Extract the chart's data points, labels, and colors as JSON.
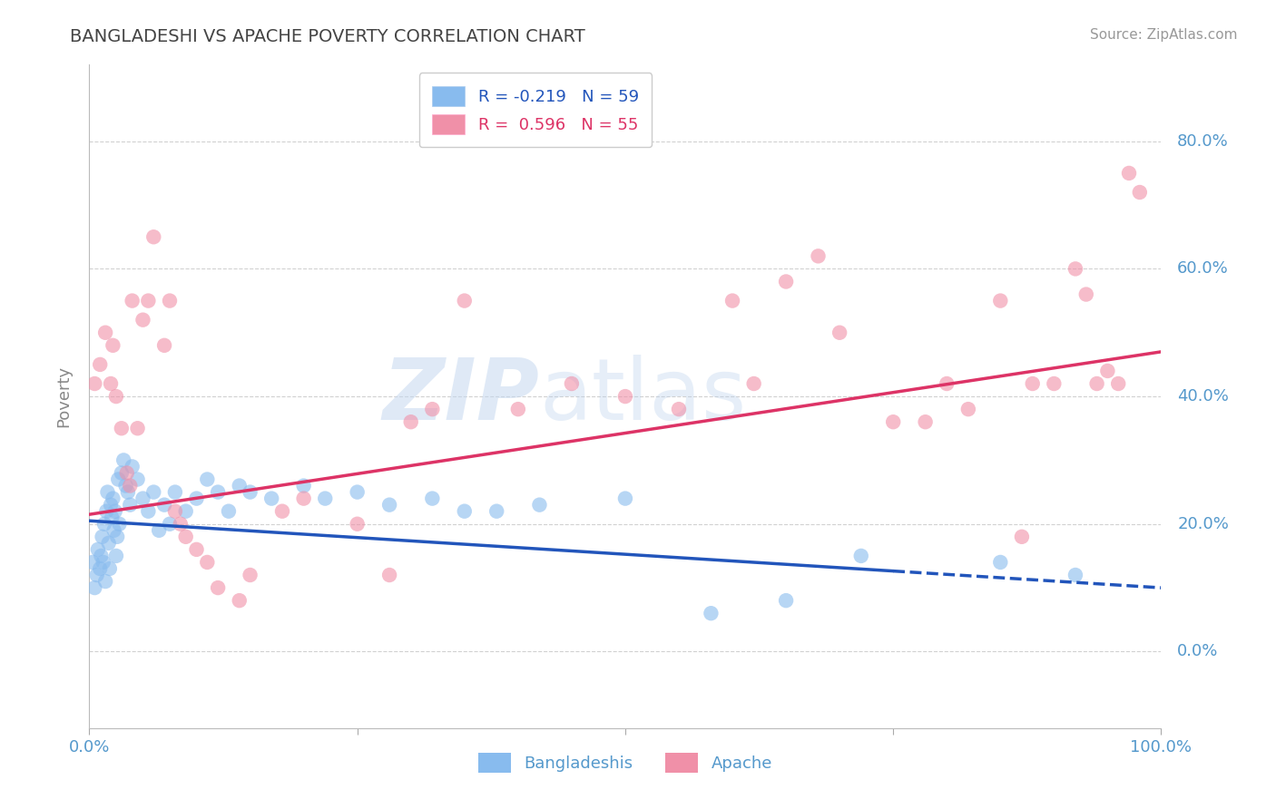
{
  "title": "BANGLADESHI VS APACHE POVERTY CORRELATION CHART",
  "source": "Source: ZipAtlas.com",
  "ylabel": "Poverty",
  "blue_color": "#88bbee",
  "pink_color": "#f090a8",
  "blue_line_color": "#2255bb",
  "pink_line_color": "#dd3366",
  "watermark_zip_color": "#c5d8f0",
  "watermark_atlas_color": "#b8d0ec",
  "title_color": "#444444",
  "axis_label_color": "#5599cc",
  "source_color": "#999999",
  "grid_color": "#cccccc",
  "right_ytick_vals": [
    0,
    20,
    40,
    60,
    80
  ],
  "right_ytick_labels": [
    "0.0%",
    "20.0%",
    "40.0%",
    "60.0%",
    "80.0%"
  ],
  "xlim": [
    0,
    100
  ],
  "ylim": [
    -12,
    92
  ],
  "legend1_label1": "R = -0.219   N = 59",
  "legend1_label2": "R =  0.596   N = 55",
  "legend2_label1": "Bangladeshis",
  "legend2_label2": "Apache",
  "blue_line_x0": 0,
  "blue_line_y0": 20.5,
  "blue_line_x1": 100,
  "blue_line_y1": 10.0,
  "blue_line_solid_end": 75,
  "pink_line_x0": 0,
  "pink_line_y0": 21.5,
  "pink_line_x1": 100,
  "pink_line_y1": 47.0,
  "blue_x": [
    0.3,
    0.5,
    0.7,
    0.8,
    1.0,
    1.1,
    1.2,
    1.3,
    1.4,
    1.5,
    1.6,
    1.7,
    1.8,
    1.9,
    2.0,
    2.1,
    2.2,
    2.3,
    2.4,
    2.5,
    2.6,
    2.7,
    2.8,
    3.0,
    3.2,
    3.4,
    3.6,
    3.8,
    4.0,
    4.5,
    5.0,
    5.5,
    6.0,
    6.5,
    7.0,
    7.5,
    8.0,
    9.0,
    10.0,
    11.0,
    12.0,
    13.0,
    14.0,
    15.0,
    17.0,
    20.0,
    22.0,
    25.0,
    28.0,
    32.0,
    35.0,
    38.0,
    42.0,
    50.0,
    58.0,
    65.0,
    72.0,
    85.0,
    92.0
  ],
  "blue_y": [
    14.0,
    10.0,
    12.0,
    16.0,
    13.0,
    15.0,
    18.0,
    14.0,
    20.0,
    11.0,
    22.0,
    25.0,
    17.0,
    13.0,
    23.0,
    21.0,
    24.0,
    19.0,
    22.0,
    15.0,
    18.0,
    27.0,
    20.0,
    28.0,
    30.0,
    26.0,
    25.0,
    23.0,
    29.0,
    27.0,
    24.0,
    22.0,
    25.0,
    19.0,
    23.0,
    20.0,
    25.0,
    22.0,
    24.0,
    27.0,
    25.0,
    22.0,
    26.0,
    25.0,
    24.0,
    26.0,
    24.0,
    25.0,
    23.0,
    24.0,
    22.0,
    22.0,
    23.0,
    24.0,
    6.0,
    8.0,
    15.0,
    14.0,
    12.0
  ],
  "pink_x": [
    1.0,
    1.5,
    2.0,
    2.5,
    3.0,
    3.5,
    4.0,
    5.0,
    6.0,
    7.0,
    8.0,
    9.0,
    10.0,
    11.0,
    12.0,
    15.0,
    18.0,
    20.0,
    25.0,
    30.0,
    32.0,
    35.0,
    40.0,
    45.0,
    50.0,
    55.0,
    60.0,
    65.0,
    70.0,
    75.0,
    80.0,
    85.0,
    88.0,
    90.0,
    92.0,
    93.0,
    94.0,
    95.0,
    96.0,
    97.0,
    98.0,
    2.2,
    3.8,
    5.5,
    7.5,
    14.0,
    28.0,
    0.5,
    4.5,
    8.5,
    62.0,
    68.0,
    78.0,
    82.0,
    87.0
  ],
  "pink_y": [
    45.0,
    50.0,
    42.0,
    40.0,
    35.0,
    28.0,
    55.0,
    52.0,
    65.0,
    48.0,
    22.0,
    18.0,
    16.0,
    14.0,
    10.0,
    12.0,
    22.0,
    24.0,
    20.0,
    36.0,
    38.0,
    55.0,
    38.0,
    42.0,
    40.0,
    38.0,
    55.0,
    58.0,
    50.0,
    36.0,
    42.0,
    55.0,
    42.0,
    42.0,
    60.0,
    56.0,
    42.0,
    44.0,
    42.0,
    75.0,
    72.0,
    48.0,
    26.0,
    55.0,
    55.0,
    8.0,
    12.0,
    42.0,
    35.0,
    20.0,
    42.0,
    62.0,
    36.0,
    38.0,
    18.0
  ]
}
